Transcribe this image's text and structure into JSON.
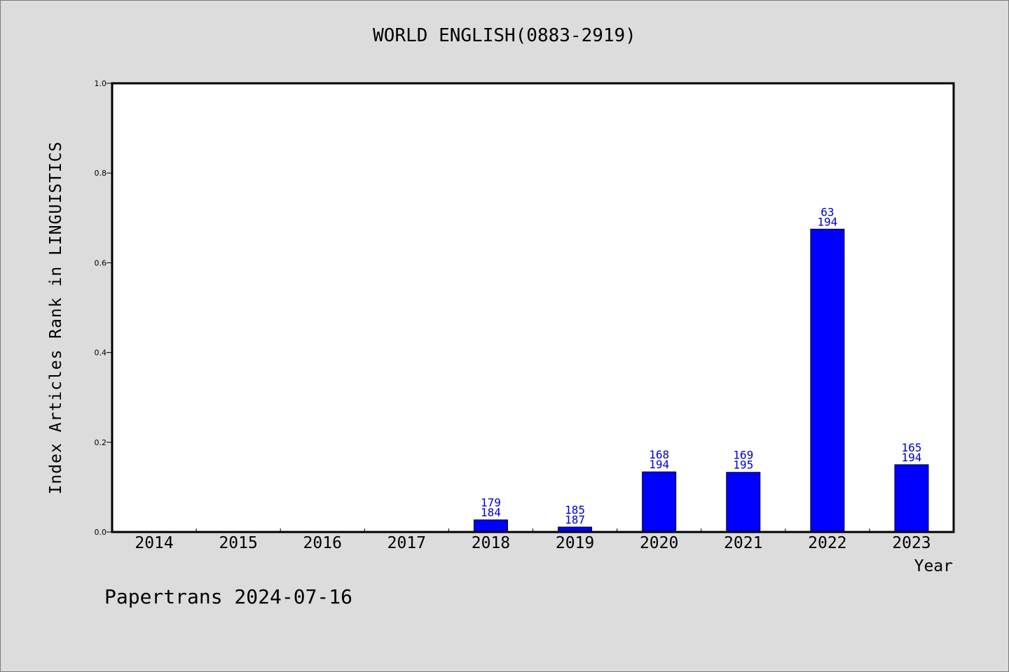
{
  "chart_data": {
    "type": "bar",
    "title": "WORLD ENGLISH(0883-2919)",
    "xlabel": "Year",
    "ylabel": "Index Articles Rank in LINGUISTICS",
    "ylim": [
      0,
      1.0
    ],
    "yticks": [
      "0.0",
      "0.2",
      "0.4",
      "0.6",
      "0.8",
      "1.0"
    ],
    "categories": [
      "2014",
      "2015",
      "2016",
      "2017",
      "2018",
      "2019",
      "2020",
      "2021",
      "2022",
      "2023"
    ],
    "values": [
      null,
      null,
      null,
      null,
      0.027,
      0.011,
      0.134,
      0.133,
      0.675,
      0.15
    ],
    "labels": [
      null,
      null,
      null,
      null,
      [
        "179",
        "184"
      ],
      [
        "185",
        "187"
      ],
      [
        "168",
        "194"
      ],
      [
        "169",
        "195"
      ],
      [
        "63",
        "194"
      ],
      [
        "165",
        "194"
      ]
    ],
    "bar_color": "#0000ff",
    "label_color": "#0000cc",
    "grid": false
  },
  "footer": "Papertrans 2024-07-16"
}
